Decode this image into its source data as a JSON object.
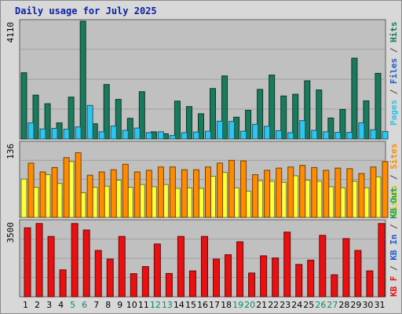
{
  "title": "Daily usage for July 2025",
  "chart_data": {
    "type": "bar",
    "title": "Daily usage for July 2025",
    "categories": [
      "1",
      "2",
      "3",
      "4",
      "5",
      "6",
      "7",
      "8",
      "9",
      "10",
      "11",
      "12",
      "13",
      "14",
      "15",
      "16",
      "17",
      "18",
      "19",
      "20",
      "21",
      "22",
      "23",
      "24",
      "25",
      "26",
      "27",
      "28",
      "29",
      "30",
      "31"
    ],
    "weekend_days": [
      "5",
      "6",
      "12",
      "13",
      "19",
      "20",
      "26",
      "27"
    ],
    "colors": {
      "hits": "#1a7a5e",
      "files": "#2ec6f0",
      "pages": "#30d0ff",
      "visits": "#ffff40",
      "sites": "#ff8c00",
      "kb_f": "#e81010",
      "kb_in": "#1e5fd0",
      "kb_out": "#16a04a",
      "weekend": "#0a8a6a",
      "title": "#0a1fa8"
    },
    "panels": [
      {
        "name": "requests",
        "ymax_label": "4110",
        "ymax": 4110,
        "right_labels": [
          {
            "text": "Pages",
            "color": "#30c0f0"
          },
          {
            "text": "Files",
            "color": "#1e5fd0"
          },
          {
            "text": "Hits",
            "color": "#1a7a5e"
          }
        ],
        "series": [
          {
            "name": "Hits",
            "color": "#1a7a5e",
            "values": [
              2310,
              1530,
              1230,
              560,
              1460,
              4110,
              530,
              1900,
              1380,
              720,
              1650,
              250,
              180,
              1320,
              1130,
              880,
              1760,
              2200,
              760,
              1000,
              1730,
              2230,
              1500,
              1560,
              2030,
              1710,
              730,
              1030,
              2820,
              1330,
              2290
            ]
          },
          {
            "name": "Files",
            "color": "#2ec6f0",
            "values": [
              560,
              350,
              370,
              340,
              420,
              1170,
              250,
              450,
              300,
              380,
              220,
              250,
              120,
              220,
              240,
              270,
              620,
              610,
              270,
              510,
              440,
              290,
              220,
              640,
              300,
              250,
              230,
              230,
              560,
              320,
              260
            ]
          }
        ]
      },
      {
        "name": "visitors",
        "ymax_label": "136",
        "ymax": 136,
        "right_labels": [
          {
            "text": "Visits",
            "color": "#c8c800"
          },
          {
            "text": "Sites",
            "color": "#ff8c00"
          }
        ],
        "series": [
          {
            "name": "Visits",
            "color": "#ffff40",
            "values": [
              70,
              55,
              78,
              62,
              102,
              45,
              55,
              57,
              68,
              55,
              60,
              56,
              60,
              53,
              54,
              53,
              75,
              82,
              54,
              48,
              67,
              66,
              64,
              76,
              68,
              66,
              56,
              54,
              66,
              54,
              74
            ]
          },
          {
            "name": "Sites",
            "color": "#ff8c00",
            "values": [
              99,
              83,
              91,
              109,
              118,
              77,
              83,
              87,
              97,
              83,
              86,
              92,
              92,
              87,
              87,
              92,
              99,
              104,
              103,
              78,
              86,
              90,
              92,
              95,
              91,
              86,
              90,
              89,
              80,
              92,
              102
            ]
          }
        ]
      },
      {
        "name": "traffic",
        "ymax_label": "3500",
        "ymax": 3500,
        "right_labels": [
          {
            "text": "KB F",
            "color": "#e81010"
          },
          {
            "text": "KB In",
            "color": "#1e5fd0"
          },
          {
            "text": "KB Out",
            "color": "#16a04a"
          }
        ],
        "series": [
          {
            "name": "KB F",
            "color": "#e81010",
            "values": [
              3200,
              3400,
              2800,
              1250,
              3400,
              3100,
              2150,
              1750,
              2800,
              1070,
              1400,
              2450,
              1080,
              2800,
              1200,
              2800,
              1750,
              1950,
              2550,
              1100,
              1900,
              1800,
              3000,
              1500,
              1700,
              2850,
              1020,
              2700,
              2150,
              1200,
              3400
            ]
          }
        ]
      }
    ]
  }
}
